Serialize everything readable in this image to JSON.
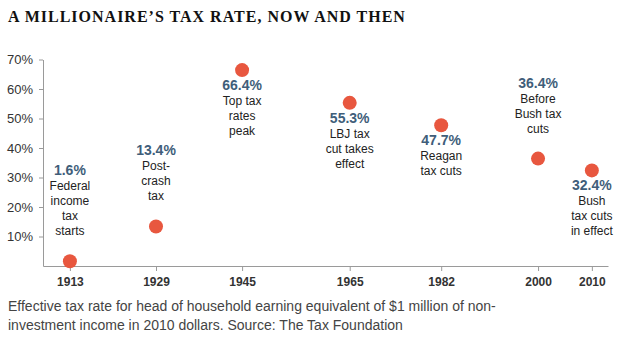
{
  "chart_data": {
    "type": "scatter",
    "title": "A MILLIONAIRE’S TAX RATE, NOW AND THEN",
    "x": [
      1913,
      1929,
      1945,
      1965,
      1982,
      2000,
      2010
    ],
    "values": [
      1.6,
      13.4,
      66.4,
      55.3,
      47.7,
      36.4,
      32.4
    ],
    "value_labels": [
      "1.6%",
      "13.4%",
      "66.4%",
      "55.3%",
      "47.7%",
      "36.4%",
      "32.4%"
    ],
    "data_labels": true,
    "annotations": [
      [
        "Federal",
        "income",
        "tax",
        "starts"
      ],
      [
        "Post-",
        "crash",
        "tax"
      ],
      [
        "Top tax",
        "rates",
        "peak"
      ],
      [
        "LBJ tax",
        "cut takes",
        "effect"
      ],
      [
        "Reagan",
        "tax cuts"
      ],
      [
        "Before",
        "Bush tax",
        "cuts"
      ],
      [
        "Bush",
        "tax cuts",
        "in effect"
      ]
    ],
    "caption": [
      "Effective tax rate for head of household earning equivalent of $1 million of non-",
      "investment income in 2010 dollars. Source: The Tax Foundation"
    ],
    "color": "#e8573f",
    "marker": "circle",
    "grid": false,
    "xlim": [
      1908,
      2013
    ],
    "xticks": [
      1913,
      1929,
      1945,
      1965,
      1982,
      2000,
      2010
    ],
    "ylim": [
      0,
      70
    ],
    "yticks": [
      {
        "value": 10,
        "label": "10%"
      },
      {
        "value": 20,
        "label": "20%"
      },
      {
        "value": 30,
        "label": "30%"
      },
      {
        "value": 40,
        "label": "40%"
      },
      {
        "value": 50,
        "label": "50%"
      },
      {
        "value": 60,
        "label": "60%"
      },
      {
        "value": 70,
        "label": "70%"
      }
    ]
  }
}
